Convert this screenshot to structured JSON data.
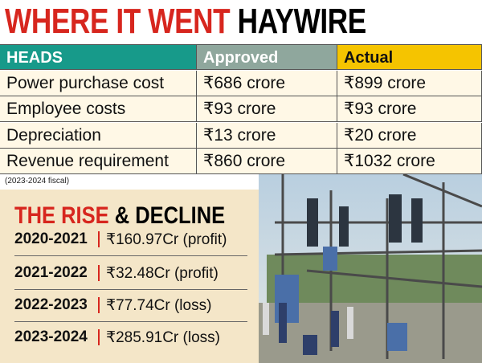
{
  "header": {
    "title_highlight": "WHERE IT WENT",
    "title_rest": "HAYWIRE"
  },
  "table": {
    "columns": [
      "HEADS",
      "Approved",
      "Actual"
    ],
    "rows": [
      [
        "Power purchase cost",
        "₹686 crore",
        "₹899 crore"
      ],
      [
        "Employee costs",
        "₹93 crore",
        "₹93 crore"
      ],
      [
        "Depreciation",
        "₹13 crore",
        "₹20 crore"
      ],
      [
        "Revenue requirement",
        "₹860 crore",
        "₹1032 crore"
      ]
    ]
  },
  "note": "(2023-2024 fiscal)",
  "trend": {
    "title_highlight": "THE RISE",
    "title_rest": "& DECLINE",
    "rows": [
      {
        "year": "2020-2021",
        "value": "₹160.97Cr (profit)"
      },
      {
        "year": "2021-2022",
        "value": "₹32.48Cr (profit)"
      },
      {
        "year": "2022-2023",
        "value": "₹77.74Cr (loss)"
      },
      {
        "year": "2023-2024",
        "value": "₹285.91Cr (loss)"
      }
    ]
  }
}
